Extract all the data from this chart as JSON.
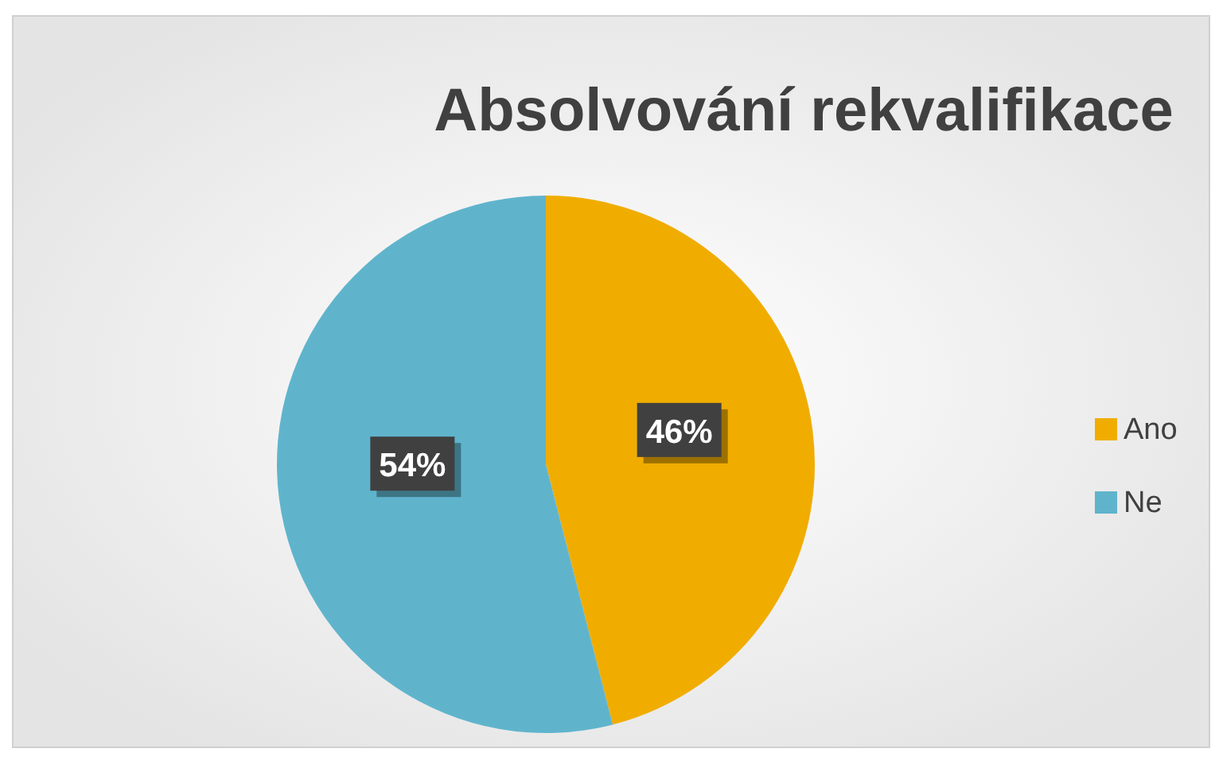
{
  "chart_data": {
    "type": "pie",
    "title": "Absolvování rekvalifikace",
    "categories": [
      "Ano",
      "Ne"
    ],
    "values": [
      46,
      54
    ],
    "colors": [
      "#f0ad00",
      "#5fb4cc"
    ],
    "value_labels": [
      "46%",
      "54%"
    ],
    "legend": "right"
  }
}
